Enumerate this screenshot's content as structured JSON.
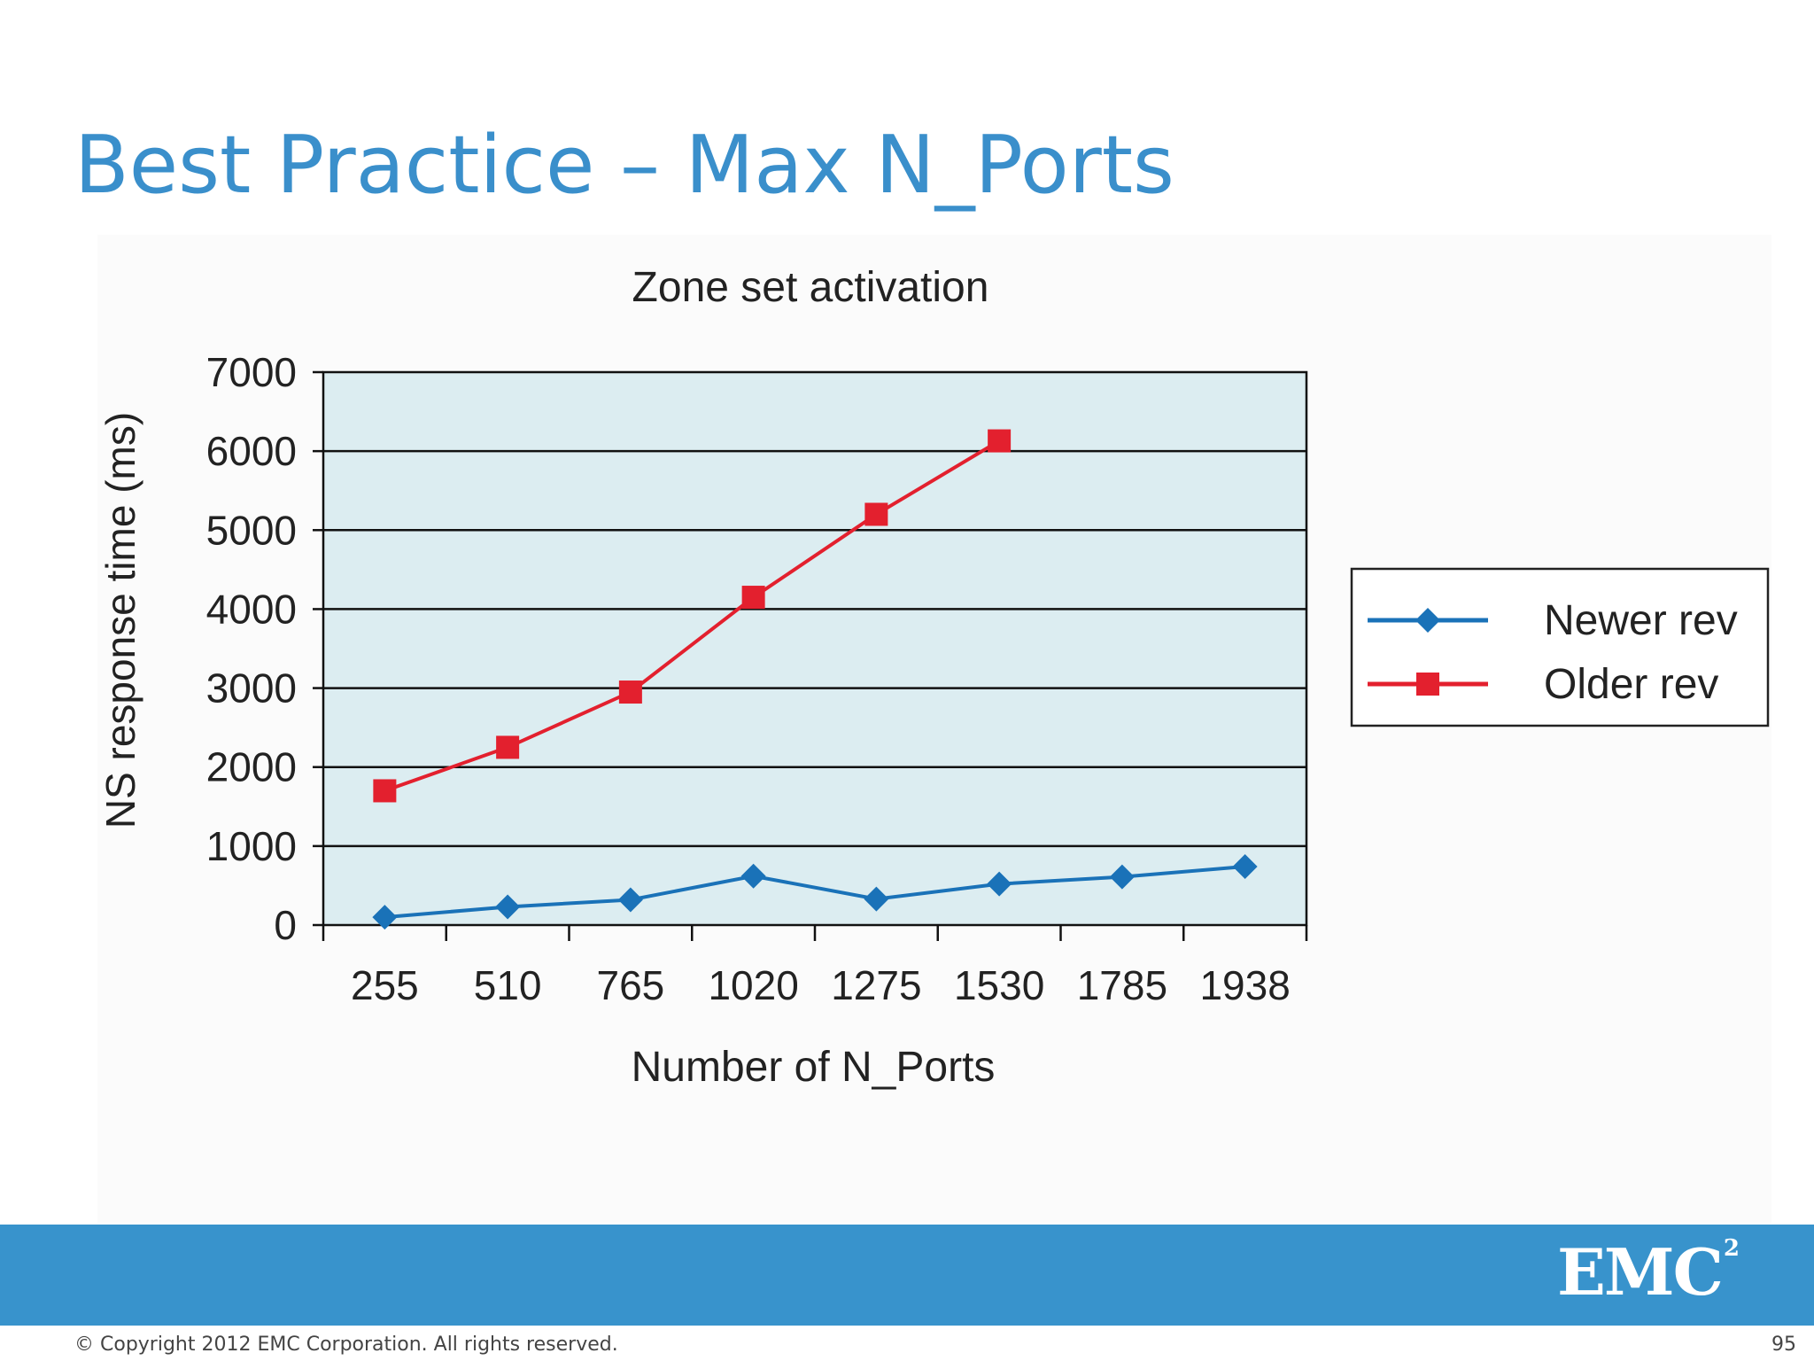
{
  "slide": {
    "title": "Best Practice – Max N_Ports",
    "copyright": "© Copyright 2012 EMC Corporation. All rights reserved.",
    "page_number": "95",
    "logo_text": "EMC",
    "logo_superscript": "2",
    "colors": {
      "title": "#3a8fcb",
      "footer_band": "#3893cc",
      "plot_background": "#dcedf1"
    }
  },
  "chart_data": {
    "type": "line",
    "title": "Zone set activation",
    "xlabel": "Number of N_Ports",
    "ylabel": "NS response time (ms)",
    "categories": [
      "255",
      "510",
      "765",
      "1020",
      "1275",
      "1530",
      "1785",
      "1938"
    ],
    "ylim": [
      0,
      7000
    ],
    "yticks": [
      0,
      1000,
      2000,
      3000,
      4000,
      5000,
      6000,
      7000
    ],
    "grid": "horizontal",
    "legend_position": "right",
    "series": [
      {
        "name": "Newer rev",
        "color": "#1a72b8",
        "marker": "diamond",
        "values": [
          100,
          230,
          320,
          620,
          330,
          520,
          610,
          740
        ]
      },
      {
        "name": "Older rev",
        "color": "#e3202e",
        "marker": "square",
        "values": [
          1700,
          2250,
          2950,
          4150,
          5200,
          6130,
          null,
          null
        ]
      }
    ]
  }
}
